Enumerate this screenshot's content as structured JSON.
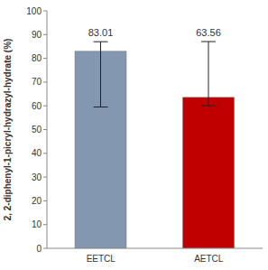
{
  "chart_data": {
    "type": "bar",
    "categories": [
      "EETCL",
      "AETCL"
    ],
    "values": [
      83.01,
      63.56
    ],
    "colors": [
      "#8497b0",
      "#c00000"
    ],
    "errors_minus": [
      23.5,
      3.5
    ],
    "errors_plus": [
      4,
      23.5
    ],
    "y_label": "2, 2-diphenyl-1-picryl-hydrazyl-hydrate  (%)",
    "ylim": [
      0,
      100
    ],
    "yticks": [
      0,
      10,
      20,
      30,
      40,
      50,
      60,
      70,
      80,
      90,
      100
    ],
    "grid": false,
    "data_labels": true
  }
}
